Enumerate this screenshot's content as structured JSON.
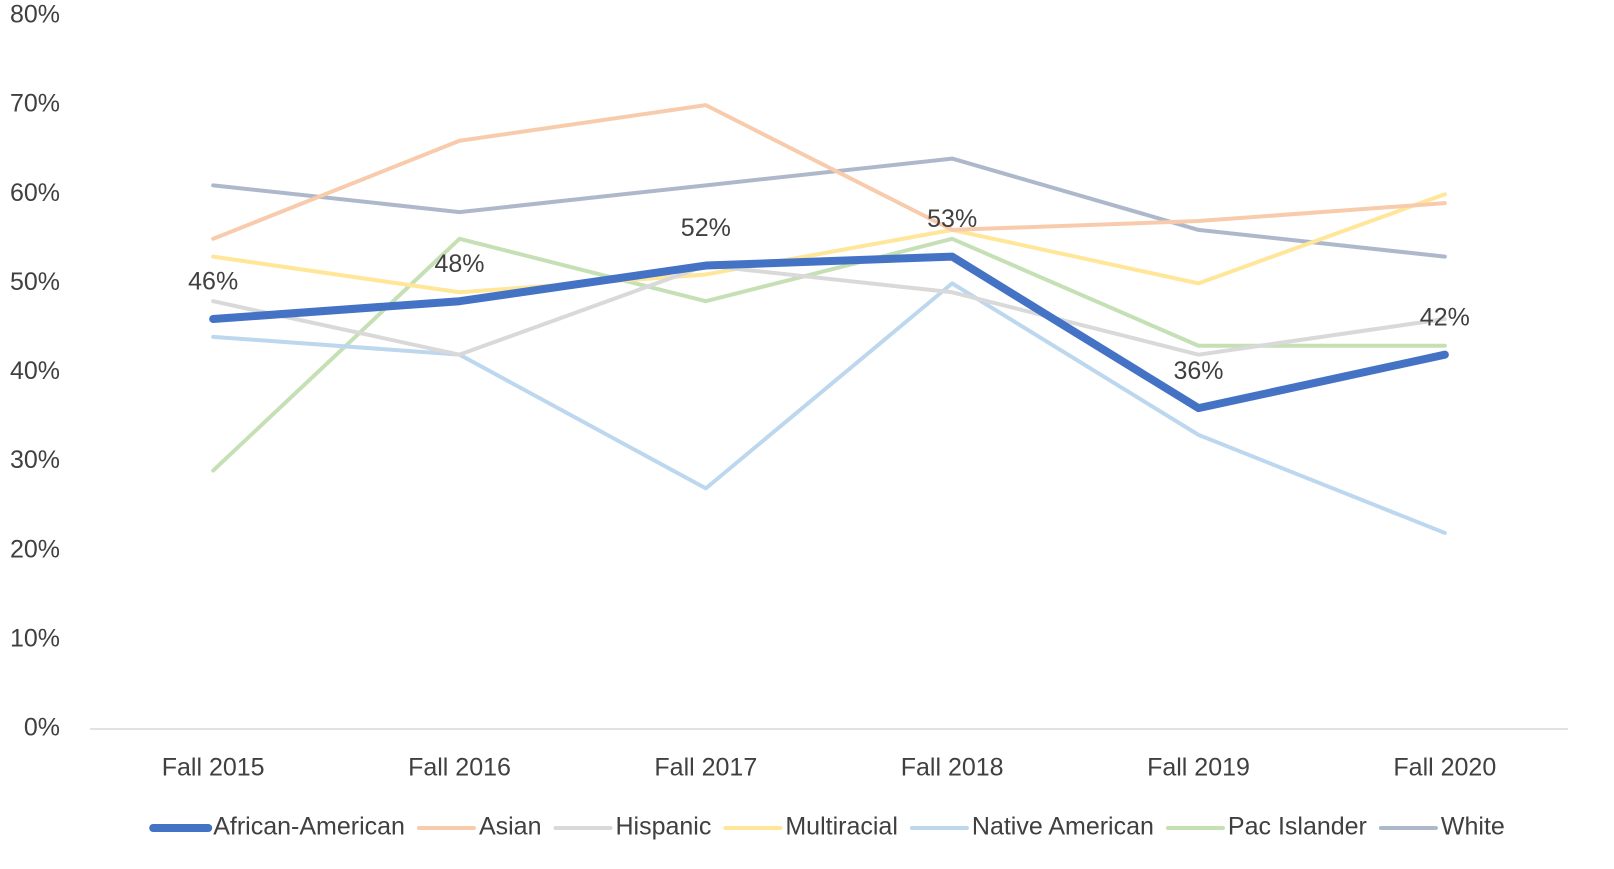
{
  "chart_data": {
    "type": "line",
    "categories": [
      "Fall 2015",
      "Fall 2016",
      "Fall 2017",
      "Fall 2018",
      "Fall 2019",
      "Fall 2020"
    ],
    "series": [
      {
        "name": "African-American",
        "color": "#4472c4",
        "values": [
          46,
          48,
          52,
          53,
          36,
          42
        ],
        "value_labels": [
          "46%",
          "48%",
          "52%",
          "53%",
          "36%",
          "42%"
        ]
      },
      {
        "name": "Asian",
        "color": "#f8cbad",
        "values": [
          55,
          66,
          70,
          56,
          57,
          59
        ]
      },
      {
        "name": "Hispanic",
        "color": "#d9d9d9",
        "values": [
          48,
          42,
          52,
          49,
          42,
          46
        ]
      },
      {
        "name": "Multiracial",
        "color": "#ffe699",
        "values": [
          53,
          49,
          51,
          56,
          50,
          60
        ]
      },
      {
        "name": "Native American",
        "color": "#bdd7ee",
        "values": [
          44,
          42,
          27,
          50,
          33,
          22
        ]
      },
      {
        "name": "Pac Islander",
        "color": "#c5e0b4",
        "values": [
          29,
          55,
          48,
          55,
          43,
          43
        ]
      },
      {
        "name": "White",
        "color": "#adb9ca",
        "values": [
          61,
          58,
          61,
          64,
          56,
          53
        ]
      }
    ],
    "ylim": [
      0,
      80
    ],
    "yticks": [
      {
        "value": 0,
        "label": "0%"
      },
      {
        "value": 10,
        "label": "10%"
      },
      {
        "value": 20,
        "label": "20%"
      },
      {
        "value": 30,
        "label": "30%"
      },
      {
        "value": 40,
        "label": "40%"
      },
      {
        "value": 50,
        "label": "50%"
      },
      {
        "value": 60,
        "label": "60%"
      },
      {
        "value": 70,
        "label": "70%"
      },
      {
        "value": 80,
        "label": "80%"
      }
    ],
    "grid": false,
    "legend": "bottom"
  }
}
